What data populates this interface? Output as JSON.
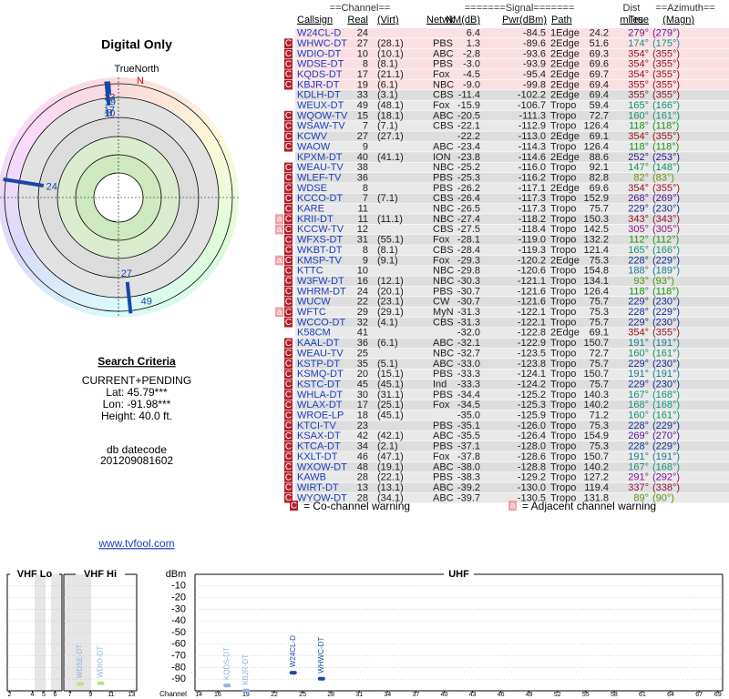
{
  "title": "Digital Only",
  "radar": {
    "north_label": "TrueNorth",
    "north": "N"
  },
  "search": {
    "heading": "Search Criteria",
    "lines": [
      "CURRENT+PENDING",
      "Lat: 45.79***",
      "Lon: -91.98***",
      "Height: 40.0 ft."
    ]
  },
  "db": {
    "label": "db datecode",
    "value": "201209081602"
  },
  "link": "www.tvfool.com",
  "table": {
    "group_headers": {
      "channel": "==Channel==",
      "signal": "=======Signal=======",
      "dist": "Dist",
      "azimuth": "==Azimuth=="
    },
    "headers": [
      "Callsign",
      "Real",
      "(Virt)",
      "Netwk",
      "NM(dB)",
      "Pwr(dBm)",
      "Path",
      "miles",
      "True",
      "(Magn)"
    ],
    "rows": [
      [
        [],
        "W24CL-D",
        24,
        null,
        null,
        "6.4",
        "-84.5",
        "1Edge",
        "24.2",
        "279°",
        "(279°)"
      ],
      [
        [
          "C"
        ],
        "WHWC-DT",
        27,
        "(28.1)",
        "PBS",
        "1.3",
        "-89.6",
        "2Edge",
        "51.6",
        "174°",
        "(175°)"
      ],
      [
        [
          "C"
        ],
        "WDIO-DT",
        10,
        "(10.1)",
        "ABC",
        "-2.8",
        "-93.6",
        "2Edge",
        "69.3",
        "354°",
        "(355°)"
      ],
      [
        [
          "C"
        ],
        "WDSE-DT",
        8,
        "(8.1)",
        "PBS",
        "-3.0",
        "-93.9",
        "2Edge",
        "69.6",
        "354°",
        "(355°)"
      ],
      [
        [
          "C"
        ],
        "KQDS-DT",
        17,
        "(21.1)",
        "Fox",
        "-4.5",
        "-95.4",
        "2Edge",
        "69.7",
        "354°",
        "(355°)"
      ],
      [
        [
          "C"
        ],
        "KBJR-DT",
        19,
        "(6.1)",
        "NBC",
        "-9.0",
        "-99.8",
        "2Edge",
        "69.4",
        "355°",
        "(355°)"
      ],
      [
        [],
        "KDLH-DT",
        33,
        "(3.1)",
        "CBS",
        "-11.4",
        "-102.2",
        "2Edge",
        "69.4",
        "355°",
        "(355°)"
      ],
      [
        [],
        "WEUX-DT",
        49,
        "(48.1)",
        "Fox",
        "-15.9",
        "-106.7",
        "Tropo",
        "59.4",
        "165°",
        "(166°)"
      ],
      [
        [
          "C"
        ],
        "WQOW-TV",
        15,
        "(18.1)",
        "ABC",
        "-20.5",
        "-111.3",
        "Tropo",
        "72.7",
        "160°",
        "(161°)"
      ],
      [
        [
          "C"
        ],
        "WSAW-TV",
        7,
        "(7.1)",
        "CBS",
        "-22.1",
        "-112.9",
        "Tropo",
        "126.4",
        "118°",
        "(118°)"
      ],
      [
        [
          "C"
        ],
        "KCWV",
        27,
        "(27.1)",
        null,
        "-22.2",
        "-113.0",
        "2Edge",
        "69.1",
        "354°",
        "(355°)"
      ],
      [
        [
          "C"
        ],
        "WAOW",
        9,
        null,
        "ABC",
        "-23.4",
        "-114.3",
        "Tropo",
        "126.4",
        "118°",
        "(118°)"
      ],
      [
        [],
        "KPXM-DT",
        40,
        "(41.1)",
        "ION",
        "-23.8",
        "-114.6",
        "2Edge",
        "88.6",
        "252°",
        "(253°)"
      ],
      [
        [
          "C"
        ],
        "WEAU-TV",
        38,
        null,
        "NBC",
        "-25.2",
        "-116.0",
        "Tropo",
        "92.1",
        "147°",
        "(148°)"
      ],
      [
        [
          "C"
        ],
        "WLEF-TV",
        36,
        null,
        "PBS",
        "-25.3",
        "-116.2",
        "Tropo",
        "82.8",
        "82°",
        "(83°)"
      ],
      [
        [
          "C"
        ],
        "WDSE",
        8,
        null,
        "PBS",
        "-26.2",
        "-117.1",
        "2Edge",
        "69.6",
        "354°",
        "(355°)"
      ],
      [
        [
          "C"
        ],
        "KCCO-DT",
        7,
        "(7.1)",
        "CBS",
        "-26.4",
        "-117.3",
        "Tropo",
        "152.9",
        "268°",
        "(269°)"
      ],
      [
        [
          "C"
        ],
        "KARE",
        11,
        null,
        "NBC",
        "-26.5",
        "-117.3",
        "Tropo",
        "75.7",
        "229°",
        "(230°)"
      ],
      [
        [
          "a",
          "C"
        ],
        "KRII-DT",
        11,
        "(11.1)",
        "NBC",
        "-27.4",
        "-118.2",
        "Tropo",
        "150.3",
        "343°",
        "(343°)"
      ],
      [
        [
          "a",
          "C"
        ],
        "KCCW-TV",
        12,
        null,
        "CBS",
        "-27.5",
        "-118.4",
        "Tropo",
        "142.5",
        "305°",
        "(305°)"
      ],
      [
        [
          "C"
        ],
        "WFXS-DT",
        31,
        "(55.1)",
        "Fox",
        "-28.1",
        "-119.0",
        "Tropo",
        "132.2",
        "112°",
        "(112°)"
      ],
      [
        [
          "C"
        ],
        "WKBT-DT",
        8,
        "(8.1)",
        "CBS",
        "-28.4",
        "-119.3",
        "Tropo",
        "121.4",
        "165°",
        "(166°)"
      ],
      [
        [
          "a",
          "C"
        ],
        "KMSP-TV",
        9,
        "(9.1)",
        "Fox",
        "-29.3",
        "-120.2",
        "2Edge",
        "75.3",
        "228°",
        "(229°)"
      ],
      [
        [
          "C"
        ],
        "KTTC",
        10,
        null,
        "NBC",
        "-29.8",
        "-120.6",
        "Tropo",
        "154.8",
        "188°",
        "(189°)"
      ],
      [
        [
          "C"
        ],
        "W3FW-DT",
        16,
        "(12.1)",
        "NBC",
        "-30.3",
        "-121.1",
        "Tropo",
        "134.1",
        "93°",
        "(93°)"
      ],
      [
        [
          "C"
        ],
        "WHRM-DT",
        24,
        "(20.1)",
        "PBS",
        "-30.7",
        "-121.6",
        "Tropo",
        "126.4",
        "118°",
        "(118°)"
      ],
      [
        [
          "C"
        ],
        "WUCW",
        22,
        "(23.1)",
        "CW",
        "-30.7",
        "-121.6",
        "Tropo",
        "75.7",
        "229°",
        "(230°)"
      ],
      [
        [
          "a",
          "C"
        ],
        "WFTC",
        29,
        "(29.1)",
        "MyN",
        "-31.3",
        "-122.1",
        "Tropo",
        "75.3",
        "228°",
        "(229°)"
      ],
      [
        [
          "C"
        ],
        "WCCO-DT",
        32,
        "(4.1)",
        "CBS",
        "-31.3",
        "-122.1",
        "Tropo",
        "75.7",
        "229°",
        "(230°)"
      ],
      [
        [],
        "K58CM",
        41,
        null,
        null,
        "-32.0",
        "-122.8",
        "2Edge",
        "69.1",
        "354°",
        "(355°)"
      ],
      [
        [
          "C"
        ],
        "KAAL-DT",
        36,
        "(6.1)",
        "ABC",
        "-32.1",
        "-122.9",
        "Tropo",
        "150.7",
        "191°",
        "(191°)"
      ],
      [
        [
          "C"
        ],
        "WEAU-TV",
        25,
        null,
        "NBC",
        "-32.7",
        "-123.5",
        "Tropo",
        "72.7",
        "160°",
        "(161°)"
      ],
      [
        [
          "C"
        ],
        "KSTP-DT",
        35,
        "(5.1)",
        "ABC",
        "-33.0",
        "-123.8",
        "Tropo",
        "75.7",
        "229°",
        "(230°)"
      ],
      [
        [
          "C"
        ],
        "KSMQ-DT",
        20,
        "(15.1)",
        "PBS",
        "-33.3",
        "-124.1",
        "Tropo",
        "150.7",
        "191°",
        "(191°)"
      ],
      [
        [
          "C"
        ],
        "KSTC-DT",
        45,
        "(45.1)",
        "Ind",
        "-33.3",
        "-124.2",
        "Tropo",
        "75.7",
        "229°",
        "(230°)"
      ],
      [
        [
          "C"
        ],
        "WHLA-DT",
        30,
        "(31.1)",
        "PBS",
        "-34.4",
        "-125.2",
        "Tropo",
        "140.3",
        "167°",
        "(168°)"
      ],
      [
        [
          "C"
        ],
        "WLAX-DT",
        17,
        "(25.1)",
        "Fox",
        "-34.5",
        "-125.3",
        "Tropo",
        "140.2",
        "168°",
        "(168°)"
      ],
      [
        [
          "C"
        ],
        "WROE-LP",
        18,
        "(45.1)",
        null,
        "-35.0",
        "-125.9",
        "Tropo",
        "71.2",
        "160°",
        "(161°)"
      ],
      [
        [
          "C"
        ],
        "KTCI-TV",
        23,
        null,
        "PBS",
        "-35.1",
        "-126.0",
        "Tropo",
        "75.3",
        "228°",
        "(229°)"
      ],
      [
        [
          "C"
        ],
        "KSAX-DT",
        42,
        "(42.1)",
        "ABC",
        "-35.5",
        "-126.4",
        "Tropo",
        "154.9",
        "269°",
        "(270°)"
      ],
      [
        [
          "C"
        ],
        "KTCA-DT",
        34,
        "(2.1)",
        "PBS",
        "-37.1",
        "-128.0",
        "Tropo",
        "75.3",
        "228°",
        "(229°)"
      ],
      [
        [
          "C"
        ],
        "KXLT-DT",
        46,
        "(47.1)",
        "Fox",
        "-37.8",
        "-128.6",
        "Tropo",
        "150.7",
        "191°",
        "(191°)"
      ],
      [
        [
          "C"
        ],
        "WXOW-DT",
        48,
        "(19.1)",
        "ABC",
        "-38.0",
        "-128.8",
        "Tropo",
        "140.2",
        "167°",
        "(168°)"
      ],
      [
        [
          "C"
        ],
        "KAWB",
        28,
        "(22.1)",
        "PBS",
        "-38.3",
        "-129.2",
        "Tropo",
        "127.2",
        "291°",
        "(292°)"
      ],
      [
        [
          "C"
        ],
        "WIRT-DT",
        13,
        "(13.1)",
        "ABC",
        "-39.2",
        "-130.0",
        "Tropo",
        "119.4",
        "337°",
        "(338°)"
      ],
      [
        [
          "C"
        ],
        "WYOW-DT",
        28,
        "(34.1)",
        "ABC",
        "-39.7",
        "-130.5",
        "Tropo",
        "131.8",
        "89°",
        "(90°)"
      ]
    ]
  },
  "legend": [
    {
      "key": "C",
      "text": "= Co-channel warning"
    },
    {
      "key": "a",
      "text": "= Adjacent channel warning"
    }
  ],
  "spectrum": {
    "ylabel": "dBm",
    "xlabel": "Channel",
    "ylim": [
      -100,
      0
    ],
    "yticks": [
      -10,
      -20,
      -30,
      -40,
      -50,
      -60,
      -70,
      -80,
      -90
    ],
    "bands": [
      {
        "name": "VHF Lo",
        "xlim": [
          1.8,
          6.6
        ],
        "xticks": [
          2,
          4,
          5,
          6
        ]
      },
      {
        "name": "VHF Hi",
        "xlim": [
          6.4,
          13.5
        ],
        "xticks": [
          7,
          9,
          11,
          13
        ]
      },
      {
        "name": "UHF",
        "xlim": [
          13.6,
          69.5
        ],
        "xticks": [
          14,
          16,
          19,
          22,
          25,
          28,
          31,
          34,
          37,
          40,
          43,
          46,
          49,
          52,
          55,
          58,
          61,
          64,
          67,
          69
        ]
      }
    ]
  }
}
